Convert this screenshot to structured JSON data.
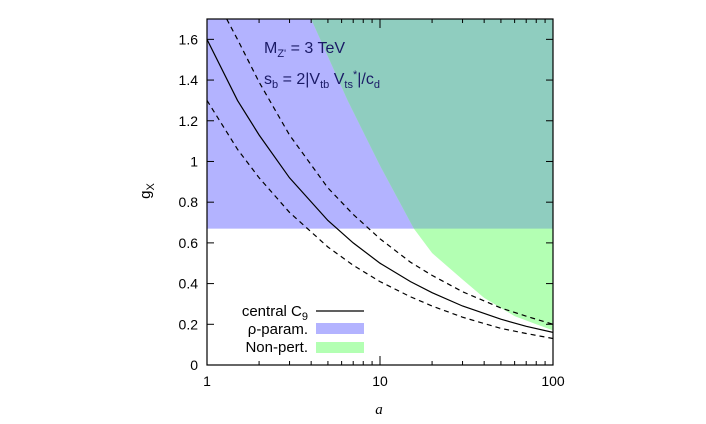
{
  "chart_data": {
    "type": "line",
    "xlabel": "a",
    "ylabel": "g",
    "ylabel_sub": "X",
    "xscale": "log",
    "xlim": [
      1,
      100
    ],
    "ylim": [
      0,
      1.7
    ],
    "x_ticks": [
      "1",
      "10",
      "100"
    ],
    "y_ticks": [
      "0",
      "0.2",
      "0.4",
      "0.6",
      "0.8",
      "1",
      "1.2",
      "1.4",
      "1.6"
    ],
    "annotations": [
      {
        "main": "M",
        "sub": "Z'",
        "rest": " = 3 TeV"
      },
      {
        "parts": [
          "s",
          "b",
          " = 2|V",
          "tb",
          " V",
          "ts",
          "*",
          "|/c",
          "d"
        ]
      }
    ],
    "regions": [
      {
        "name": "ρ-param.",
        "color": "#b3b3ff",
        "y_min": 0.67,
        "boundary_a": [
          [
            4.0,
            1.7
          ],
          [
            6.5,
            1.3
          ],
          [
            10.0,
            0.98
          ],
          [
            15.7,
            0.67
          ]
        ]
      },
      {
        "name": "Non-pert.",
        "color": "#b3ffb3",
        "boundary_a": [
          [
            4.0,
            1.7
          ],
          [
            6.5,
            1.3
          ],
          [
            10.0,
            0.98
          ],
          [
            15.7,
            0.67
          ],
          [
            20.0,
            0.55
          ],
          [
            30.0,
            0.42
          ],
          [
            40.0,
            0.33
          ],
          [
            60.0,
            0.24
          ],
          [
            80.0,
            0.2
          ],
          [
            100.0,
            0.17
          ]
        ]
      }
    ],
    "series": [
      {
        "name": "central C9",
        "style": "solid",
        "color": "#000000",
        "x": [
          1,
          1.5,
          2,
          3,
          5,
          7,
          10,
          15,
          20,
          30,
          50,
          70,
          100
        ],
        "y": [
          1.6,
          1.3,
          1.13,
          0.92,
          0.71,
          0.6,
          0.5,
          0.41,
          0.355,
          0.29,
          0.225,
          0.19,
          0.16
        ]
      },
      {
        "style": "dashed",
        "color": "#000000",
        "x": [
          1.3,
          1.5,
          2,
          3,
          5,
          7,
          10,
          15,
          20,
          30,
          50,
          70,
          100
        ],
        "y": [
          1.7,
          1.6,
          1.39,
          1.13,
          0.87,
          0.74,
          0.62,
          0.505,
          0.44,
          0.36,
          0.28,
          0.24,
          0.2
        ]
      },
      {
        "style": "dashed",
        "color": "#000000",
        "x": [
          1,
          1.5,
          2,
          3,
          5,
          7,
          10,
          15,
          20,
          30,
          50,
          70,
          100
        ],
        "y": [
          1.3,
          1.06,
          0.92,
          0.75,
          0.58,
          0.49,
          0.41,
          0.335,
          0.29,
          0.235,
          0.18,
          0.155,
          0.13
        ]
      }
    ],
    "legend": {
      "placement": "bottom-left",
      "entries": [
        {
          "label_main": "central C",
          "label_sub": "9",
          "kind": "line",
          "color": "#000000"
        },
        {
          "label_main": "ρ-param.",
          "kind": "box",
          "color": "#b3b3ff"
        },
        {
          "label_main": "Non-pert.",
          "kind": "box",
          "color": "#b3ffb3"
        }
      ]
    },
    "overlap_color": "#8fcdbf",
    "grid": false
  }
}
